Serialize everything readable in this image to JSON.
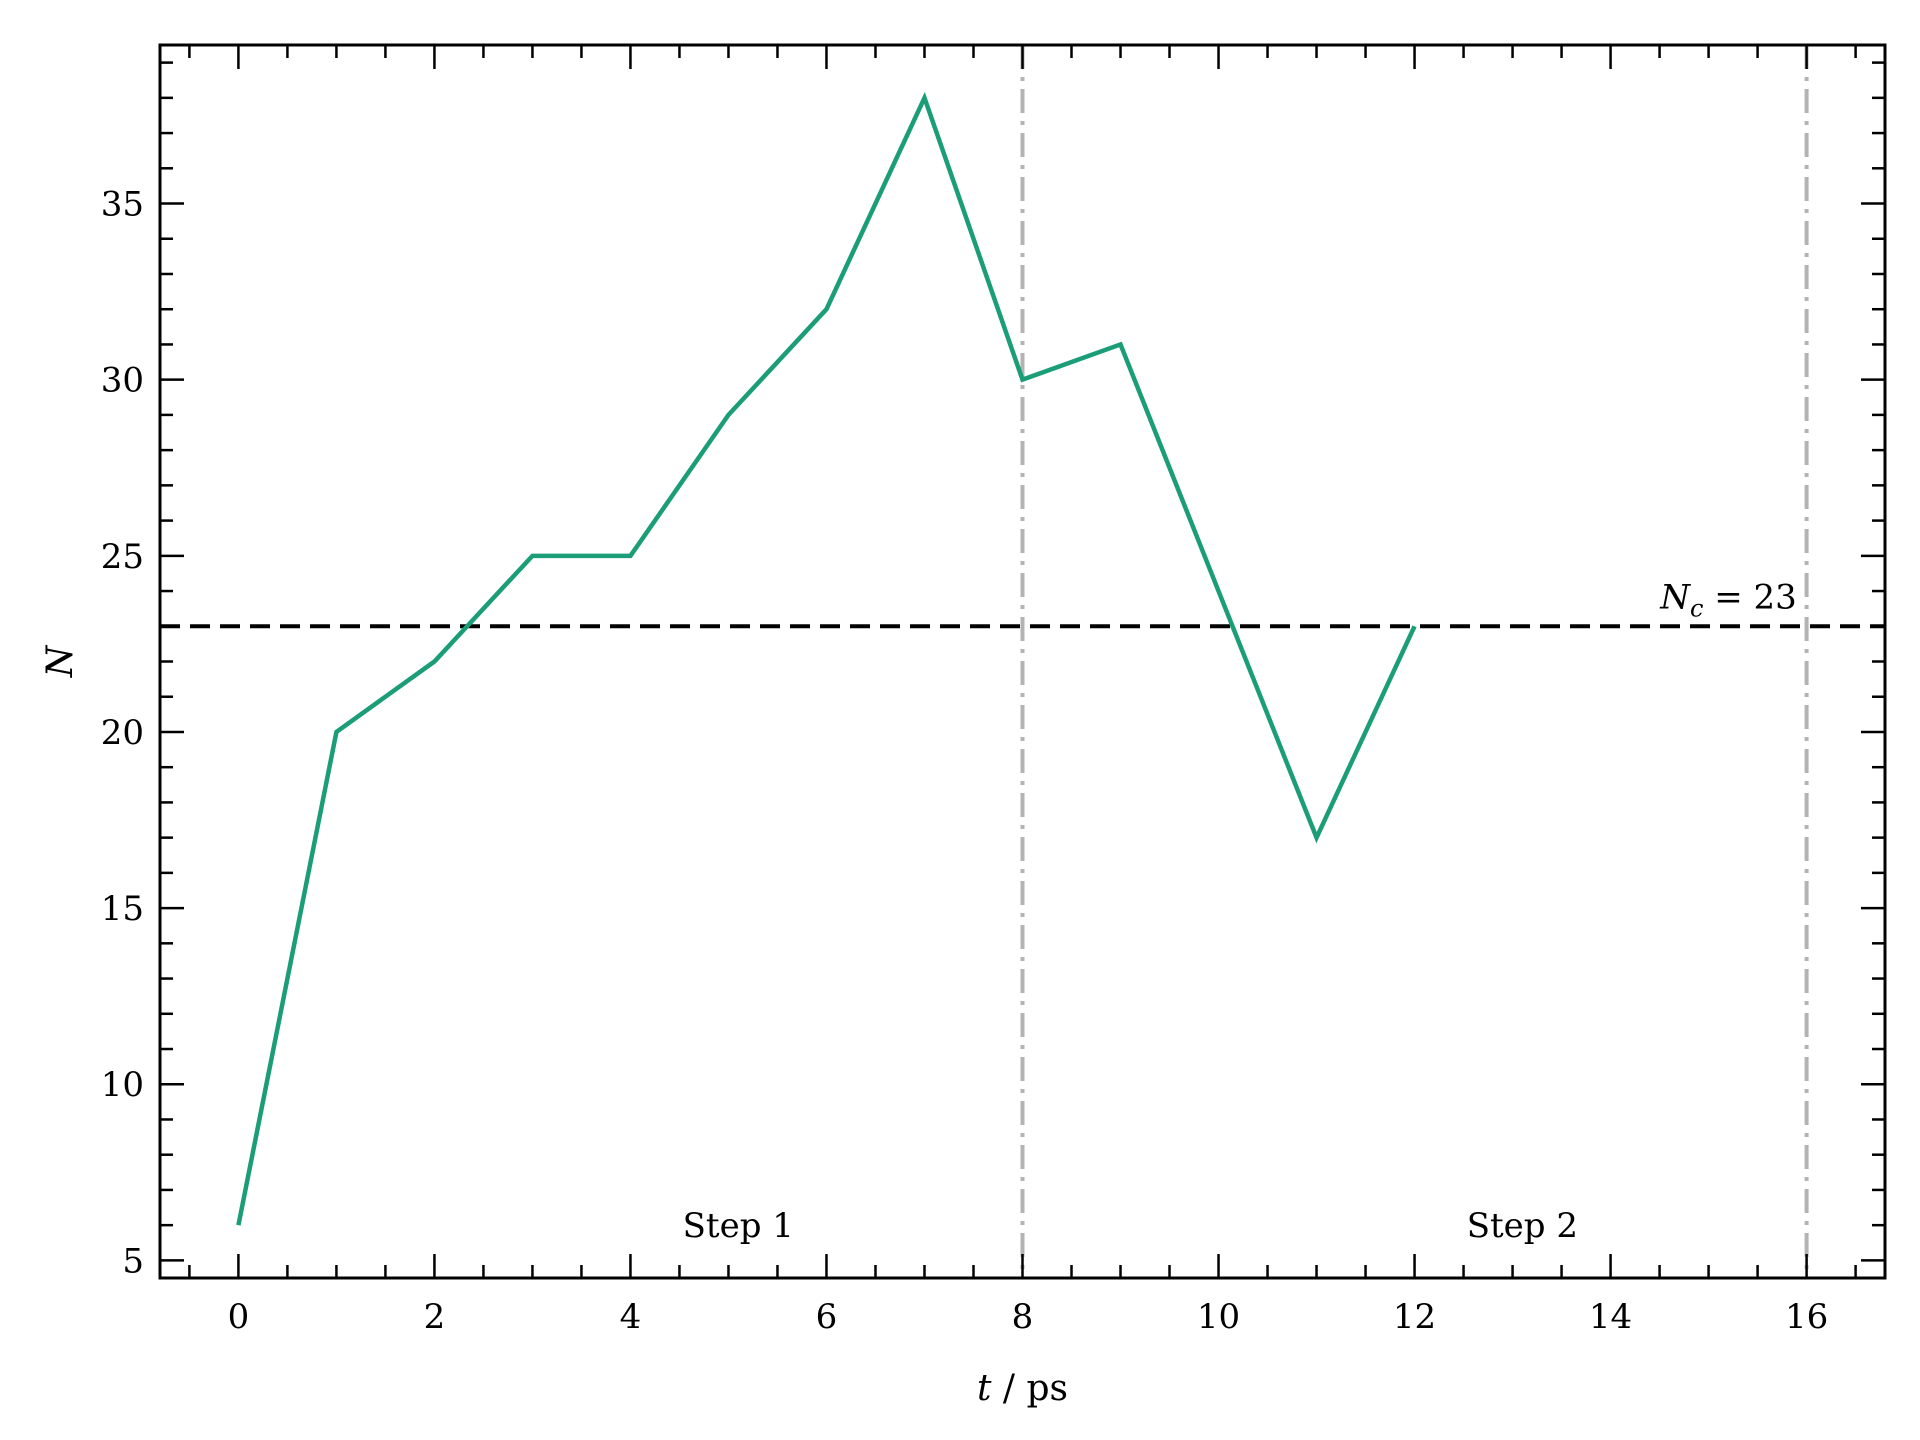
{
  "chart_data": {
    "type": "line",
    "xlabel_var": "t",
    "xlabel_unit": " / ps",
    "ylabel": "N",
    "xlim": [
      -0.8,
      16.8
    ],
    "ylim": [
      4.5,
      39.5
    ],
    "xticks": [
      0,
      2,
      4,
      6,
      8,
      10,
      12,
      14,
      16
    ],
    "yticks": [
      5,
      10,
      15,
      20,
      25,
      30,
      35
    ],
    "x_minor_step": 0.5,
    "y_minor_step": 1,
    "grid": false,
    "series": [
      {
        "color": "#1b9e77",
        "x": [
          0,
          1,
          2,
          3,
          4,
          5,
          6,
          7,
          8,
          9,
          10,
          11,
          12
        ],
        "y": [
          6,
          20,
          22,
          25,
          25,
          29,
          32,
          38,
          30,
          31,
          24,
          17,
          23
        ]
      }
    ],
    "hline": {
      "y": 23,
      "color": "#000000",
      "style": "dashed",
      "label_main": "N",
      "label_sub": "c",
      "label_rest": " = 23"
    },
    "vlines": [
      {
        "x": 8,
        "color": "#b3b3b3",
        "style": "dash-dot"
      },
      {
        "x": 16,
        "color": "#b3b3b3",
        "style": "dash-dot"
      }
    ],
    "annotations": [
      {
        "text": "Step 1",
        "x": 5.1,
        "y": 6.0
      },
      {
        "text": "Step 2",
        "x": 13.1,
        "y": 6.0
      }
    ]
  }
}
